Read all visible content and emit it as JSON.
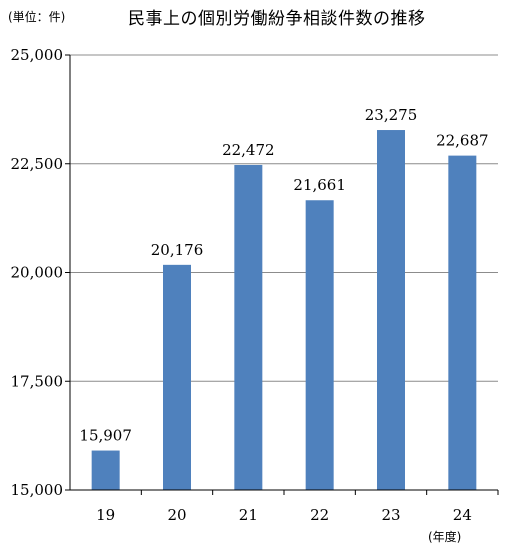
{
  "unit_label": "(単位：件)",
  "chart_data": {
    "type": "bar",
    "title": "民事上の個別労働紛争相談件数の推移",
    "xlabel": "(年度)",
    "ylabel": "",
    "categories": [
      "19",
      "20",
      "21",
      "22",
      "23",
      "24"
    ],
    "values": [
      15907,
      20176,
      22472,
      21661,
      23275,
      22687
    ],
    "value_labels": [
      "15,907",
      "20,176",
      "22,472",
      "21,661",
      "23,275",
      "22,687"
    ],
    "ylim": [
      15000,
      25000
    ],
    "yticks": [
      15000,
      17500,
      20000,
      22500,
      25000
    ],
    "ytick_labels": [
      "15,000",
      "17,500",
      "20,000",
      "22,500",
      "25,000"
    ],
    "bar_color": "#4f81bd",
    "grid": true,
    "legend": "none"
  }
}
